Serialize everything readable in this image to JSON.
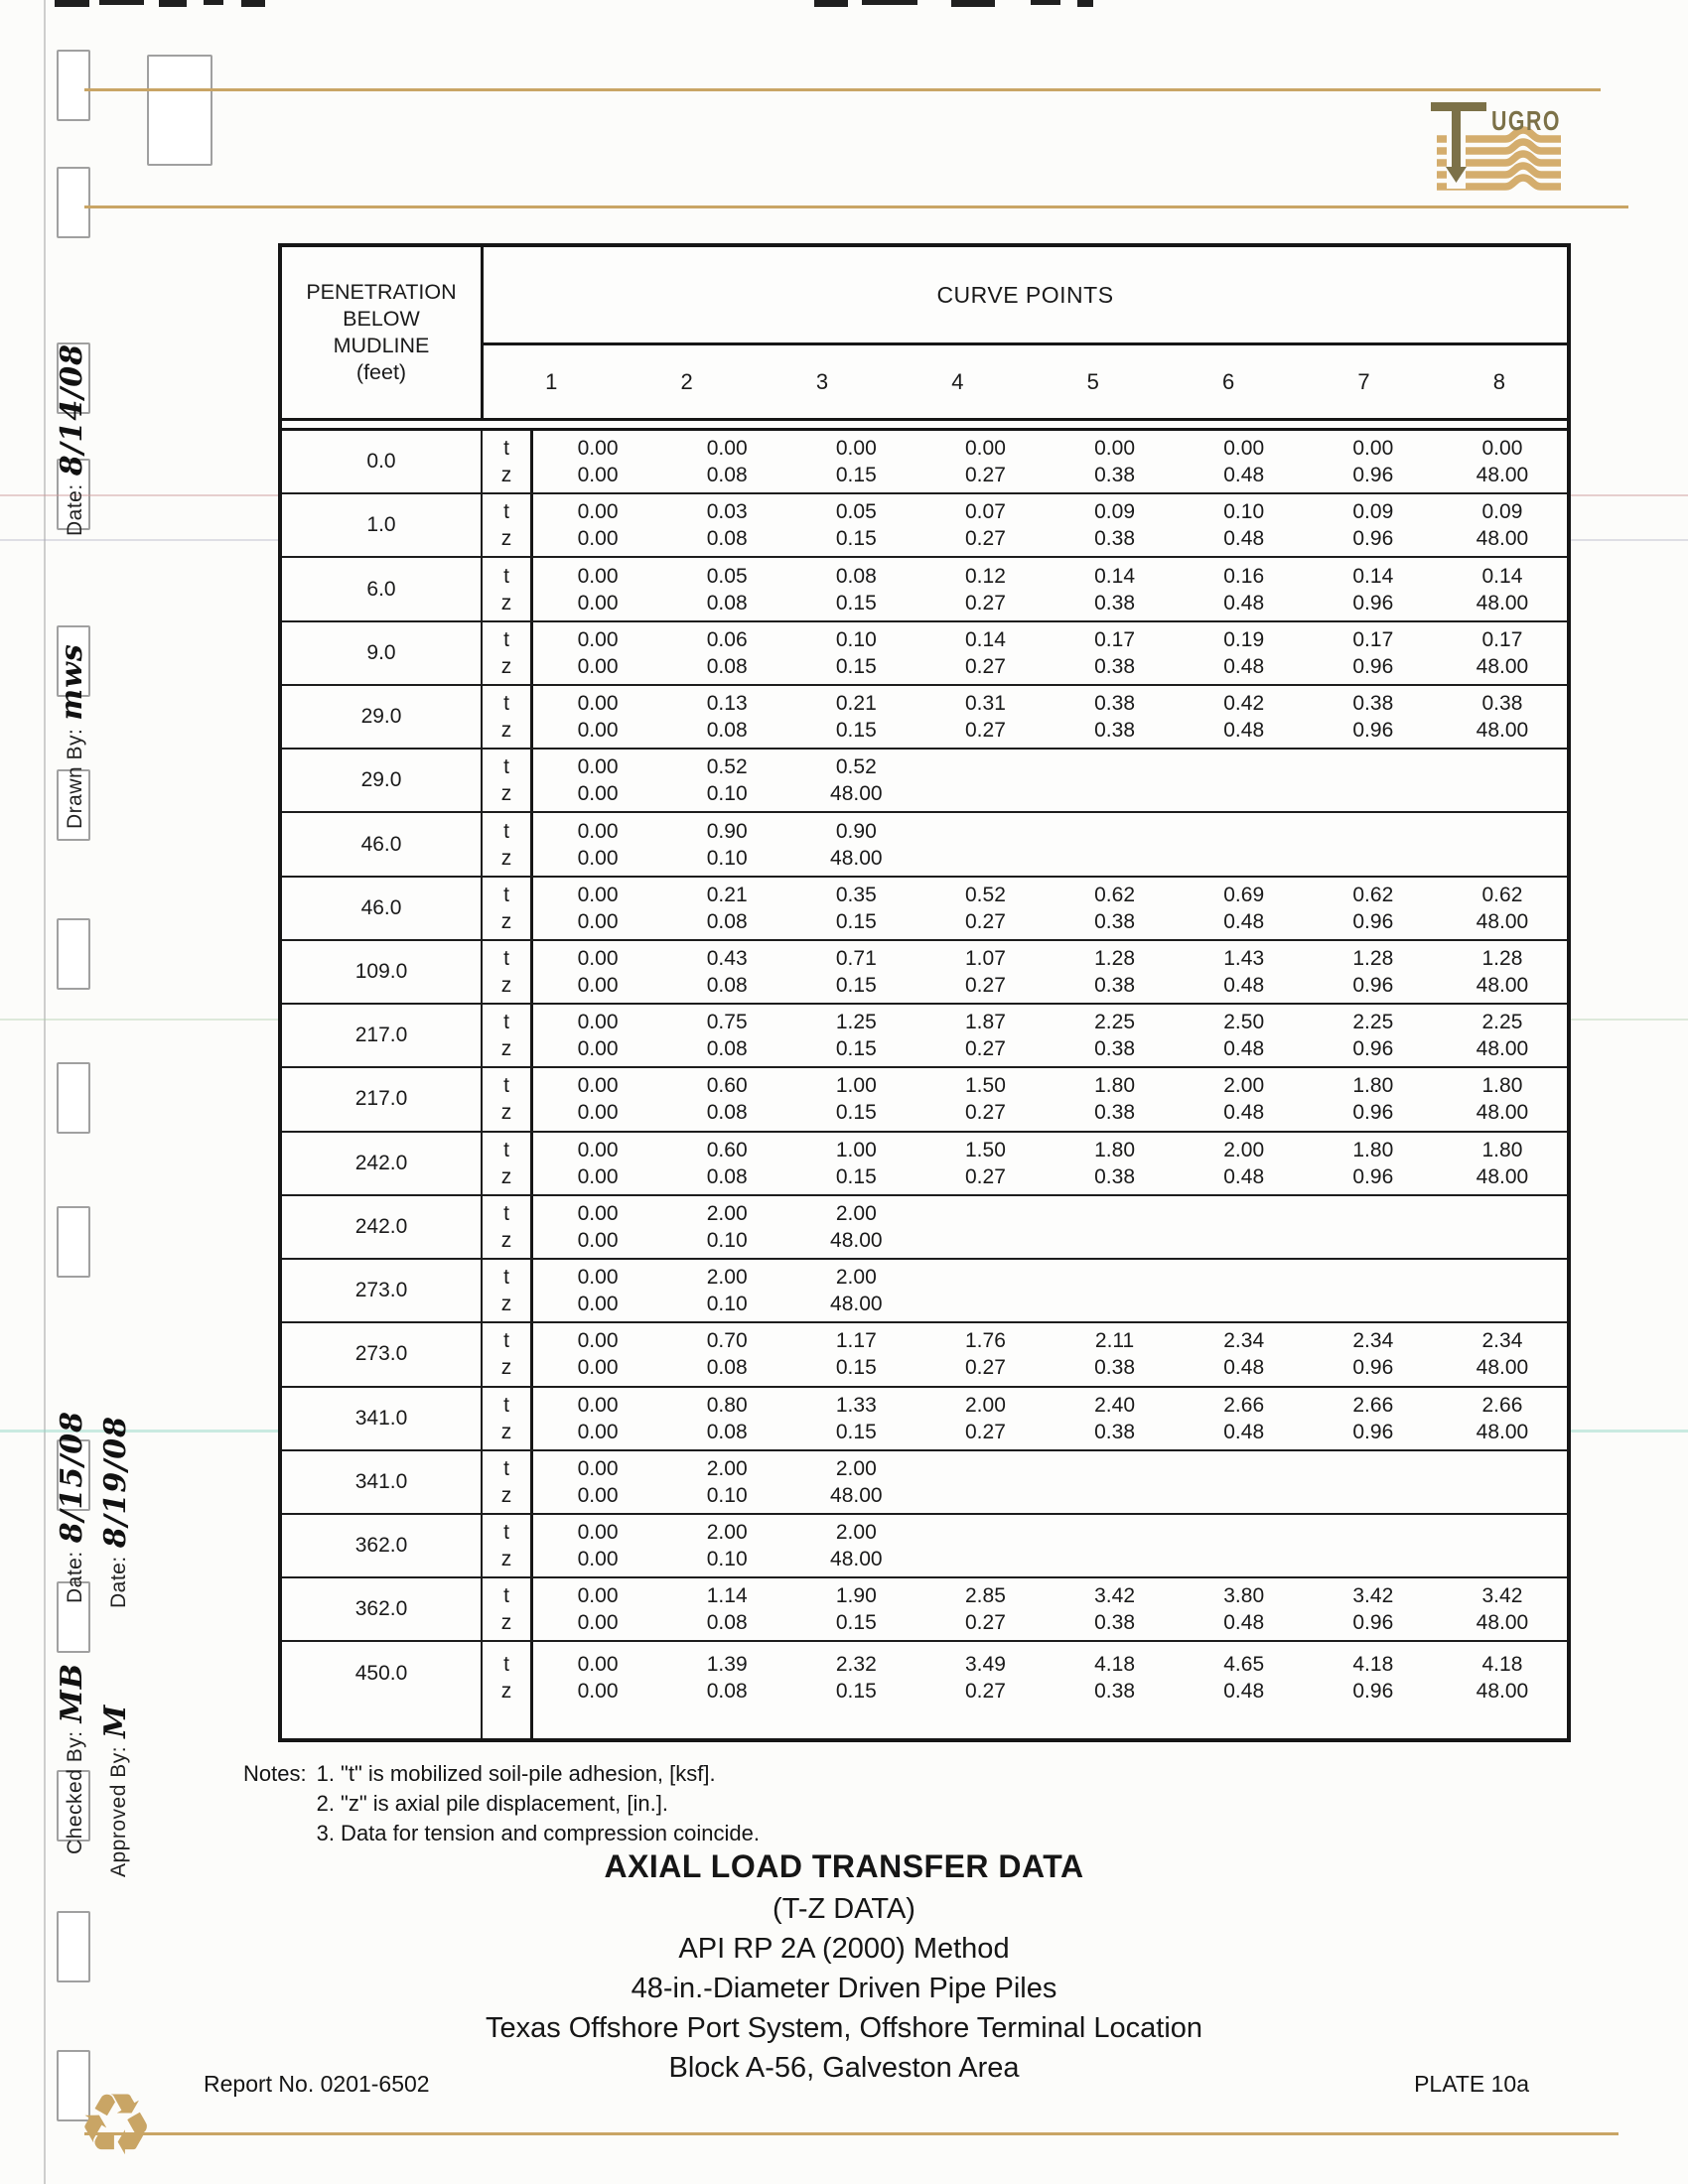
{
  "colors": {
    "accent_tan": "#c9a565",
    "logo_olive": "#7c7148",
    "ink": "#1a1a1a"
  },
  "logo": {
    "name": "fugro-logo",
    "text": "UGRO"
  },
  "margin": {
    "date_top_label": "Date:",
    "date_top_value": "8/14/08",
    "drawn_by_label": "Drawn By:",
    "drawn_by_value": "mws",
    "date_mid1_label": "Date:",
    "date_mid1_value": "8/15/08",
    "date_mid2_label": "Date:",
    "date_mid2_value": "8/19/08",
    "checked_by_label": "Checked By:",
    "checked_by_value": "MB",
    "approved_by_label": "Approved By:",
    "approved_by_value": "M"
  },
  "table": {
    "penetration_header": [
      "PENETRATION",
      "BELOW",
      "MUDLINE",
      "(feet)"
    ],
    "curve_points_header": "CURVE POINTS",
    "point_numbers": [
      "1",
      "2",
      "3",
      "4",
      "5",
      "6",
      "7",
      "8"
    ],
    "row_labels": {
      "t": "t",
      "z": "z"
    },
    "rows": [
      {
        "depth": "0.0",
        "t": [
          "0.00",
          "0.00",
          "0.00",
          "0.00",
          "0.00",
          "0.00",
          "0.00",
          "0.00"
        ],
        "z": [
          "0.00",
          "0.08",
          "0.15",
          "0.27",
          "0.38",
          "0.48",
          "0.96",
          "48.00"
        ]
      },
      {
        "depth": "1.0",
        "t": [
          "0.00",
          "0.03",
          "0.05",
          "0.07",
          "0.09",
          "0.10",
          "0.09",
          "0.09"
        ],
        "z": [
          "0.00",
          "0.08",
          "0.15",
          "0.27",
          "0.38",
          "0.48",
          "0.96",
          "48.00"
        ]
      },
      {
        "depth": "6.0",
        "t": [
          "0.00",
          "0.05",
          "0.08",
          "0.12",
          "0.14",
          "0.16",
          "0.14",
          "0.14"
        ],
        "z": [
          "0.00",
          "0.08",
          "0.15",
          "0.27",
          "0.38",
          "0.48",
          "0.96",
          "48.00"
        ]
      },
      {
        "depth": "9.0",
        "t": [
          "0.00",
          "0.06",
          "0.10",
          "0.14",
          "0.17",
          "0.19",
          "0.17",
          "0.17"
        ],
        "z": [
          "0.00",
          "0.08",
          "0.15",
          "0.27",
          "0.38",
          "0.48",
          "0.96",
          "48.00"
        ]
      },
      {
        "depth": "29.0",
        "t": [
          "0.00",
          "0.13",
          "0.21",
          "0.31",
          "0.38",
          "0.42",
          "0.38",
          "0.38"
        ],
        "z": [
          "0.00",
          "0.08",
          "0.15",
          "0.27",
          "0.38",
          "0.48",
          "0.96",
          "48.00"
        ]
      },
      {
        "depth": "29.0",
        "t": [
          "0.00",
          "0.52",
          "0.52",
          "",
          "",
          "",
          "",
          ""
        ],
        "z": [
          "0.00",
          "0.10",
          "48.00",
          "",
          "",
          "",
          "",
          ""
        ]
      },
      {
        "depth": "46.0",
        "t": [
          "0.00",
          "0.90",
          "0.90",
          "",
          "",
          "",
          "",
          ""
        ],
        "z": [
          "0.00",
          "0.10",
          "48.00",
          "",
          "",
          "",
          "",
          ""
        ]
      },
      {
        "depth": "46.0",
        "t": [
          "0.00",
          "0.21",
          "0.35",
          "0.52",
          "0.62",
          "0.69",
          "0.62",
          "0.62"
        ],
        "z": [
          "0.00",
          "0.08",
          "0.15",
          "0.27",
          "0.38",
          "0.48",
          "0.96",
          "48.00"
        ]
      },
      {
        "depth": "109.0",
        "t": [
          "0.00",
          "0.43",
          "0.71",
          "1.07",
          "1.28",
          "1.43",
          "1.28",
          "1.28"
        ],
        "z": [
          "0.00",
          "0.08",
          "0.15",
          "0.27",
          "0.38",
          "0.48",
          "0.96",
          "48.00"
        ]
      },
      {
        "depth": "217.0",
        "t": [
          "0.00",
          "0.75",
          "1.25",
          "1.87",
          "2.25",
          "2.50",
          "2.25",
          "2.25"
        ],
        "z": [
          "0.00",
          "0.08",
          "0.15",
          "0.27",
          "0.38",
          "0.48",
          "0.96",
          "48.00"
        ]
      },
      {
        "depth": "217.0",
        "t": [
          "0.00",
          "0.60",
          "1.00",
          "1.50",
          "1.80",
          "2.00",
          "1.80",
          "1.80"
        ],
        "z": [
          "0.00",
          "0.08",
          "0.15",
          "0.27",
          "0.38",
          "0.48",
          "0.96",
          "48.00"
        ]
      },
      {
        "depth": "242.0",
        "t": [
          "0.00",
          "0.60",
          "1.00",
          "1.50",
          "1.80",
          "2.00",
          "1.80",
          "1.80"
        ],
        "z": [
          "0.00",
          "0.08",
          "0.15",
          "0.27",
          "0.38",
          "0.48",
          "0.96",
          "48.00"
        ]
      },
      {
        "depth": "242.0",
        "t": [
          "0.00",
          "2.00",
          "2.00",
          "",
          "",
          "",
          "",
          ""
        ],
        "z": [
          "0.00",
          "0.10",
          "48.00",
          "",
          "",
          "",
          "",
          ""
        ]
      },
      {
        "depth": "273.0",
        "t": [
          "0.00",
          "2.00",
          "2.00",
          "",
          "",
          "",
          "",
          ""
        ],
        "z": [
          "0.00",
          "0.10",
          "48.00",
          "",
          "",
          "",
          "",
          ""
        ]
      },
      {
        "depth": "273.0",
        "t": [
          "0.00",
          "0.70",
          "1.17",
          "1.76",
          "2.11",
          "2.34",
          "2.34",
          "2.34"
        ],
        "z": [
          "0.00",
          "0.08",
          "0.15",
          "0.27",
          "0.38",
          "0.48",
          "0.96",
          "48.00"
        ]
      },
      {
        "depth": "341.0",
        "t": [
          "0.00",
          "0.80",
          "1.33",
          "2.00",
          "2.40",
          "2.66",
          "2.66",
          "2.66"
        ],
        "z": [
          "0.00",
          "0.08",
          "0.15",
          "0.27",
          "0.38",
          "0.48",
          "0.96",
          "48.00"
        ]
      },
      {
        "depth": "341.0",
        "t": [
          "0.00",
          "2.00",
          "2.00",
          "",
          "",
          "",
          "",
          ""
        ],
        "z": [
          "0.00",
          "0.10",
          "48.00",
          "",
          "",
          "",
          "",
          ""
        ]
      },
      {
        "depth": "362.0",
        "t": [
          "0.00",
          "2.00",
          "2.00",
          "",
          "",
          "",
          "",
          ""
        ],
        "z": [
          "0.00",
          "0.10",
          "48.00",
          "",
          "",
          "",
          "",
          ""
        ]
      },
      {
        "depth": "362.0",
        "t": [
          "0.00",
          "1.14",
          "1.90",
          "2.85",
          "3.42",
          "3.80",
          "3.42",
          "3.42"
        ],
        "z": [
          "0.00",
          "0.08",
          "0.15",
          "0.27",
          "0.38",
          "0.48",
          "0.96",
          "48.00"
        ]
      },
      {
        "depth": "450.0",
        "t": [
          "0.00",
          "1.39",
          "2.32",
          "3.49",
          "4.18",
          "4.65",
          "4.18",
          "4.18"
        ],
        "z": [
          "0.00",
          "0.08",
          "0.15",
          "0.27",
          "0.38",
          "0.48",
          "0.96",
          "48.00"
        ]
      }
    ]
  },
  "notes": {
    "label": "Notes:",
    "items": [
      "1.  \"t\" is mobilized soil-pile adhesion, [ksf].",
      "2.  \"z\" is axial pile displacement, [in.].",
      "3.  Data for tension and compression coincide."
    ]
  },
  "title_block": {
    "lines": [
      "AXIAL LOAD TRANSFER DATA",
      "(T-Z DATA)",
      "API RP 2A (2000) Method",
      "48-in.-Diameter Driven Pipe Piles",
      "Texas Offshore Port System, Offshore Terminal Location",
      "Block A-56, Galveston Area"
    ]
  },
  "footer": {
    "report_no": "Report No. 0201-6502",
    "plate": "PLATE 10a"
  }
}
